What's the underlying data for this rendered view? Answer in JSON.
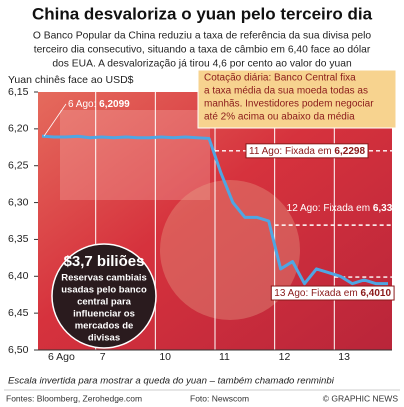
{
  "chart_data": {
    "type": "line",
    "title": "China desvaloriza o yuan pelo terceiro dia",
    "subtitle": [
      "O Banco Popular da China reduziu a taxa de referência da sua divisa pelo",
      "terceiro dia consecutivo, situando a taxa de câmbio em 6,40 face ao dólar",
      "dos EUA. A desvalorização já tirou 4,6 por cento ao valor do yuan"
    ],
    "y_axis_label": "Yuan chinês face ao USD$",
    "categories": [
      "6 Ago",
      null,
      null,
      null,
      null,
      "7",
      null,
      null,
      null,
      null,
      "10",
      null,
      null,
      null,
      null,
      "11",
      null,
      null,
      null,
      null,
      "12",
      null,
      null,
      null,
      null,
      "13",
      null,
      null,
      null,
      null
    ],
    "series": [
      {
        "name": "Yuan",
        "color": "#4fa6e3",
        "values": [
          6.2099,
          6.211,
          6.211,
          6.21,
          6.212,
          6.211,
          6.212,
          6.211,
          6.212,
          6.212,
          6.211,
          6.212,
          6.211,
          6.212,
          6.213,
          6.26,
          6.3,
          6.32,
          6.32,
          6.325,
          6.39,
          6.38,
          6.41,
          6.39,
          6.395,
          6.4,
          6.41,
          6.405,
          6.41,
          6.41
        ]
      }
    ],
    "ylim": [
      6.15,
      6.5
    ],
    "inverted": true,
    "yticks": [
      {
        "value": 6.15,
        "label": "6,15"
      },
      {
        "value": 6.2,
        "label": "6,20"
      },
      {
        "value": 6.25,
        "label": "6,25"
      },
      {
        "value": 6.3,
        "label": "6,30"
      },
      {
        "value": 6.35,
        "label": "6,35"
      },
      {
        "value": 6.4,
        "label": "6,40"
      },
      {
        "value": 6.45,
        "label": "6,45"
      },
      {
        "value": 6.5,
        "label": "6,50"
      }
    ],
    "start_annotation": {
      "text": "6 Ago: ",
      "label": "6,2099"
    },
    "fixings": [
      {
        "text": "11 Ago: Fixada em ",
        "value": 6.2298,
        "label": "6,2298"
      },
      {
        "text": "12 Ago: Fixada em ",
        "value": 6.3306,
        "label": "6,3306"
      },
      {
        "text": "13 Ago: Fixada em ",
        "value": 6.401,
        "label": "6,4010"
      }
    ],
    "note_box": [
      "Cotação diária: Banco Central fixa",
      "a taxa média da sua moeda todas as",
      "manhãs. Investidores podem negociar",
      "até 2% acima ou abaixo da média"
    ],
    "circle": {
      "headline": "$3,7 biliões",
      "lines": [
        "Reservas cambiais",
        "usadas pelo banco",
        "central para",
        "influenciar os",
        "mercados de",
        "divisas"
      ]
    },
    "footnote": "Escala invertida para mostrar a queda do yuan – também chamado renminbi",
    "sources": "Fontes: Bloomberg, Zerohedge.com",
    "photo": "Foto: Newscom",
    "credit": "© GRAPHIC NEWS"
  }
}
